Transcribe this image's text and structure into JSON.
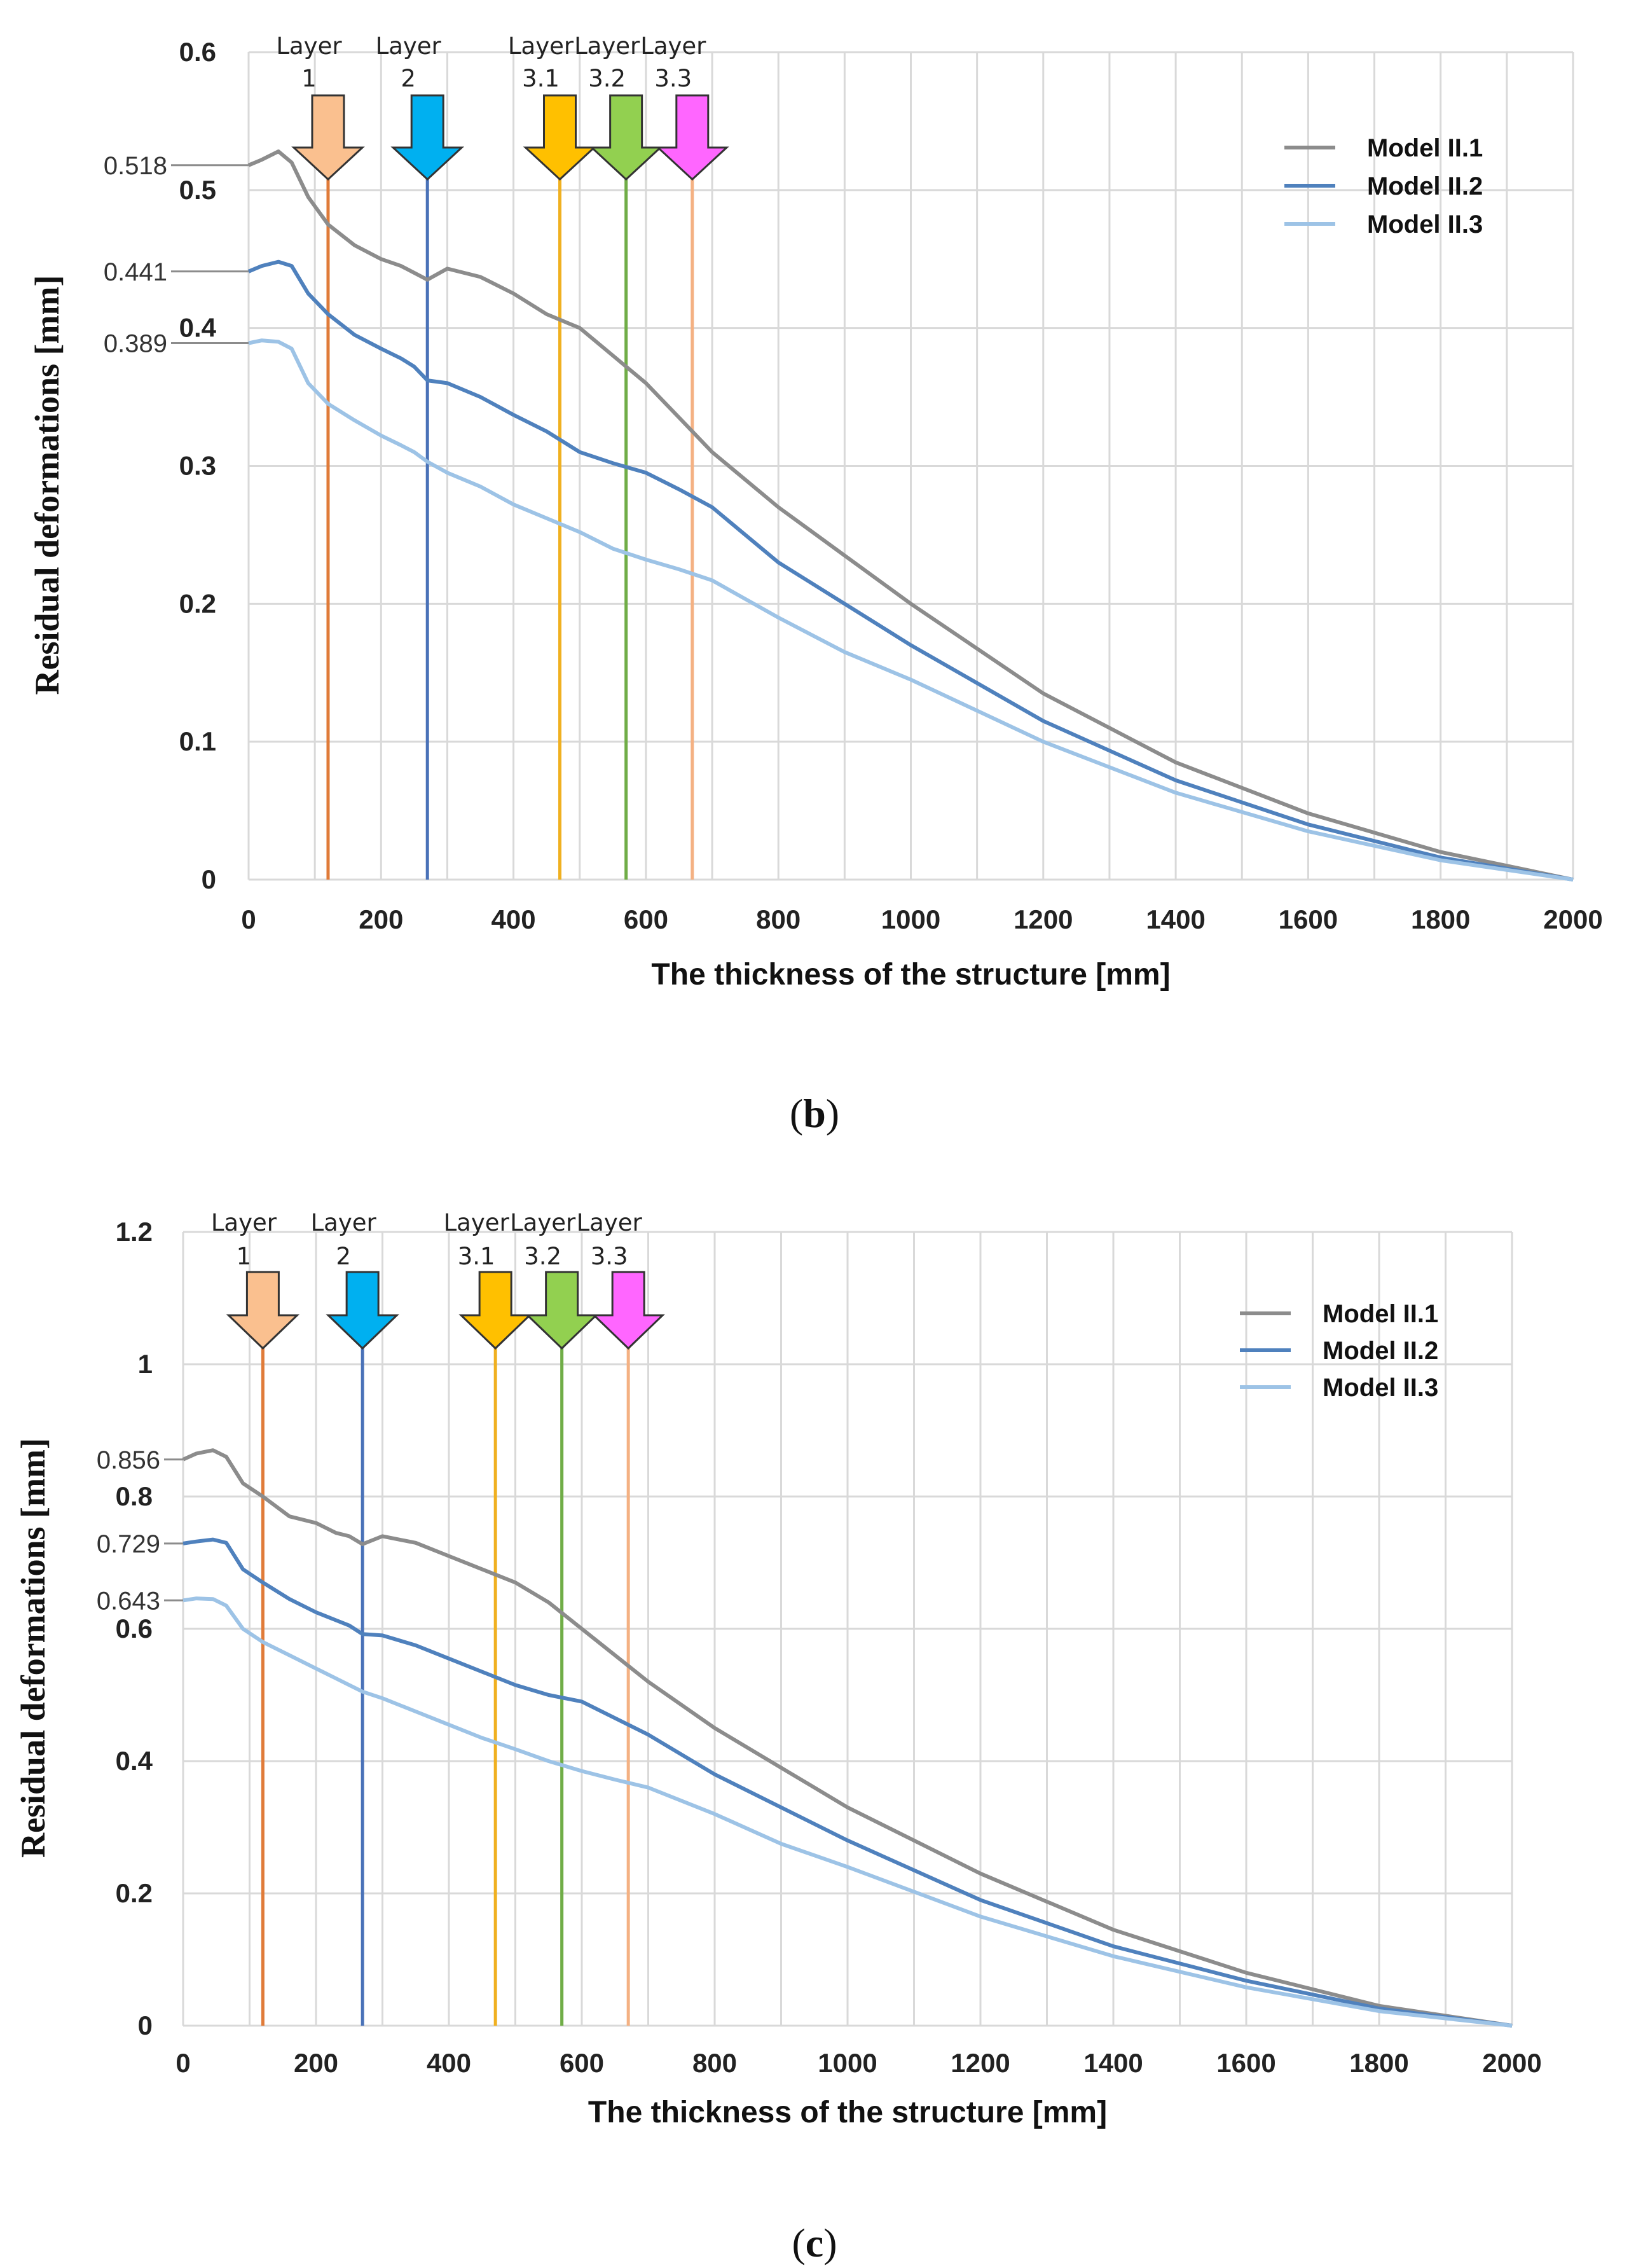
{
  "figure": {
    "caption_b": "b",
    "caption_c": "c"
  },
  "chart_data": [
    {
      "id": "b",
      "type": "line",
      "title": "",
      "xlabel": "The thickness of the structure [mm]",
      "ylabel": "Residual deformations [mm]",
      "xlim": [
        0,
        2000
      ],
      "ylim": [
        0,
        0.6
      ],
      "xticks": [
        0,
        200,
        400,
        600,
        800,
        1000,
        1200,
        1400,
        1600,
        1800,
        2000
      ],
      "xtick_labels": [
        "0",
        "200",
        "400",
        "600",
        "800",
        "1000",
        "1200",
        "1400",
        "1600",
        "1800",
        "2000"
      ],
      "yticks": [
        0,
        0.1,
        0.2,
        0.3,
        0.4,
        0.5,
        0.6
      ],
      "ytick_labels": [
        "0",
        "0.1",
        "0.2",
        "0.3",
        "0.4",
        "0.5",
        "0.6"
      ],
      "grid": true,
      "legend_position": "top-right",
      "series": [
        {
          "name": "Model II.1",
          "color": "#8c8c8c",
          "x": [
            0,
            20,
            45,
            65,
            90,
            120,
            160,
            200,
            230,
            250,
            270,
            300,
            350,
            400,
            450,
            500,
            550,
            600,
            650,
            700,
            800,
            900,
            1000,
            1200,
            1400,
            1600,
            1800,
            2000
          ],
          "y": [
            0.518,
            0.522,
            0.528,
            0.52,
            0.495,
            0.475,
            0.46,
            0.45,
            0.445,
            0.44,
            0.435,
            0.443,
            0.437,
            0.425,
            0.41,
            0.4,
            0.38,
            0.36,
            0.335,
            0.31,
            0.27,
            0.235,
            0.2,
            0.135,
            0.085,
            0.048,
            0.02,
            0.0
          ]
        },
        {
          "name": "Model II.2",
          "color": "#4f81bd",
          "x": [
            0,
            20,
            45,
            65,
            90,
            120,
            160,
            200,
            230,
            250,
            270,
            300,
            350,
            400,
            450,
            500,
            550,
            600,
            650,
            700,
            800,
            900,
            1000,
            1200,
            1400,
            1600,
            1800,
            2000
          ],
          "y": [
            0.441,
            0.445,
            0.448,
            0.445,
            0.425,
            0.41,
            0.395,
            0.385,
            0.378,
            0.372,
            0.362,
            0.36,
            0.35,
            0.337,
            0.325,
            0.31,
            0.302,
            0.295,
            0.283,
            0.27,
            0.23,
            0.2,
            0.17,
            0.115,
            0.072,
            0.04,
            0.016,
            0.0
          ]
        },
        {
          "name": "Model II.3",
          "color": "#9dc3e6",
          "x": [
            0,
            20,
            45,
            65,
            90,
            120,
            160,
            200,
            230,
            250,
            270,
            300,
            350,
            400,
            450,
            500,
            550,
            600,
            650,
            700,
            800,
            900,
            1000,
            1200,
            1400,
            1600,
            1800,
            2000
          ],
          "y": [
            0.389,
            0.391,
            0.39,
            0.385,
            0.36,
            0.345,
            0.333,
            0.322,
            0.315,
            0.31,
            0.303,
            0.295,
            0.285,
            0.272,
            0.262,
            0.252,
            0.24,
            0.232,
            0.225,
            0.217,
            0.19,
            0.165,
            0.145,
            0.1,
            0.063,
            0.035,
            0.014,
            0.0
          ]
        }
      ],
      "layers": [
        {
          "label_line1": "Layer",
          "label_line2": "1",
          "x": 120,
          "arrow_color": "#fac08f",
          "line_color": "#e07b39"
        },
        {
          "label_line1": "Layer",
          "label_line2": "2",
          "x": 270,
          "arrow_color": "#00b0f0",
          "line_color": "#4a72b8"
        },
        {
          "label_line1": "Layer",
          "label_line2": "3.1",
          "x": 470,
          "arrow_color": "#ffc000",
          "line_color": "#f0b020"
        },
        {
          "label_line1": "Layer",
          "label_line2": "3.2",
          "x": 570,
          "arrow_color": "#92d050",
          "line_color": "#70ad47"
        },
        {
          "label_line1": "Layer",
          "label_line2": "3.3",
          "x": 670,
          "arrow_color": "#ff66ff",
          "line_color": "#f4b183"
        }
      ],
      "annotations": [
        {
          "text": "0.518",
          "value": 0.518
        },
        {
          "text": "0.441",
          "value": 0.441
        },
        {
          "text": "0.389",
          "value": 0.389
        }
      ]
    },
    {
      "id": "c",
      "type": "line",
      "title": "",
      "xlabel": "The thickness of the structure [mm]",
      "ylabel": "Residual deformations [mm]",
      "xlim": [
        0,
        2000
      ],
      "ylim": [
        0,
        1.2
      ],
      "xticks": [
        0,
        200,
        400,
        600,
        800,
        1000,
        1200,
        1400,
        1600,
        1800,
        2000
      ],
      "xtick_labels": [
        "0",
        "200",
        "400",
        "600",
        "800",
        "1000",
        "1200",
        "1400",
        "1600",
        "1800",
        "2000"
      ],
      "yticks": [
        0,
        0.2,
        0.4,
        0.6,
        0.8,
        1.0,
        1.2
      ],
      "ytick_labels": [
        "0",
        "0.2",
        "0.4",
        "0.6",
        "0.8",
        "1",
        "1.2"
      ],
      "grid": true,
      "legend_position": "top-right",
      "series": [
        {
          "name": "Model II.1",
          "color": "#8c8c8c",
          "x": [
            0,
            20,
            45,
            65,
            90,
            120,
            160,
            200,
            230,
            250,
            270,
            300,
            350,
            400,
            450,
            500,
            550,
            600,
            650,
            700,
            800,
            900,
            1000,
            1200,
            1400,
            1600,
            1800,
            2000
          ],
          "y": [
            0.856,
            0.865,
            0.87,
            0.86,
            0.82,
            0.8,
            0.77,
            0.76,
            0.745,
            0.74,
            0.728,
            0.74,
            0.73,
            0.71,
            0.69,
            0.67,
            0.64,
            0.6,
            0.56,
            0.52,
            0.45,
            0.39,
            0.33,
            0.23,
            0.145,
            0.08,
            0.03,
            0.0
          ]
        },
        {
          "name": "Model II.2",
          "color": "#4f81bd",
          "x": [
            0,
            20,
            45,
            65,
            90,
            120,
            160,
            200,
            230,
            250,
            270,
            300,
            350,
            400,
            450,
            500,
            550,
            600,
            650,
            700,
            800,
            900,
            1000,
            1200,
            1400,
            1600,
            1800,
            2000
          ],
          "y": [
            0.729,
            0.732,
            0.735,
            0.73,
            0.69,
            0.67,
            0.645,
            0.625,
            0.613,
            0.605,
            0.592,
            0.59,
            0.575,
            0.555,
            0.535,
            0.515,
            0.5,
            0.49,
            0.465,
            0.44,
            0.38,
            0.33,
            0.28,
            0.19,
            0.12,
            0.068,
            0.026,
            0.0
          ]
        },
        {
          "name": "Model II.3",
          "color": "#9dc3e6",
          "x": [
            0,
            20,
            45,
            65,
            90,
            120,
            160,
            200,
            230,
            250,
            270,
            300,
            350,
            400,
            450,
            500,
            550,
            600,
            650,
            700,
            800,
            900,
            1000,
            1200,
            1400,
            1600,
            1800,
            2000
          ],
          "y": [
            0.643,
            0.646,
            0.645,
            0.635,
            0.6,
            0.58,
            0.56,
            0.54,
            0.525,
            0.515,
            0.505,
            0.495,
            0.475,
            0.455,
            0.435,
            0.418,
            0.4,
            0.385,
            0.372,
            0.36,
            0.32,
            0.275,
            0.24,
            0.165,
            0.105,
            0.058,
            0.022,
            0.0
          ]
        }
      ],
      "layers": [
        {
          "label_line1": "Layer",
          "label_line2": "1",
          "x": 120,
          "arrow_color": "#fac08f",
          "line_color": "#e07b39"
        },
        {
          "label_line1": "Layer",
          "label_line2": "2",
          "x": 270,
          "arrow_color": "#00b0f0",
          "line_color": "#4a72b8"
        },
        {
          "label_line1": "Layer",
          "label_line2": "3.1",
          "x": 470,
          "arrow_color": "#ffc000",
          "line_color": "#f0b020"
        },
        {
          "label_line1": "Layer",
          "label_line2": "3.2",
          "x": 570,
          "arrow_color": "#92d050",
          "line_color": "#70ad47"
        },
        {
          "label_line1": "Layer",
          "label_line2": "3.3",
          "x": 670,
          "arrow_color": "#ff66ff",
          "line_color": "#f4b183"
        }
      ],
      "annotations": [
        {
          "text": "0.856",
          "value": 0.856
        },
        {
          "text": "0.729",
          "value": 0.729
        },
        {
          "text": "0.643",
          "value": 0.643
        }
      ]
    }
  ]
}
